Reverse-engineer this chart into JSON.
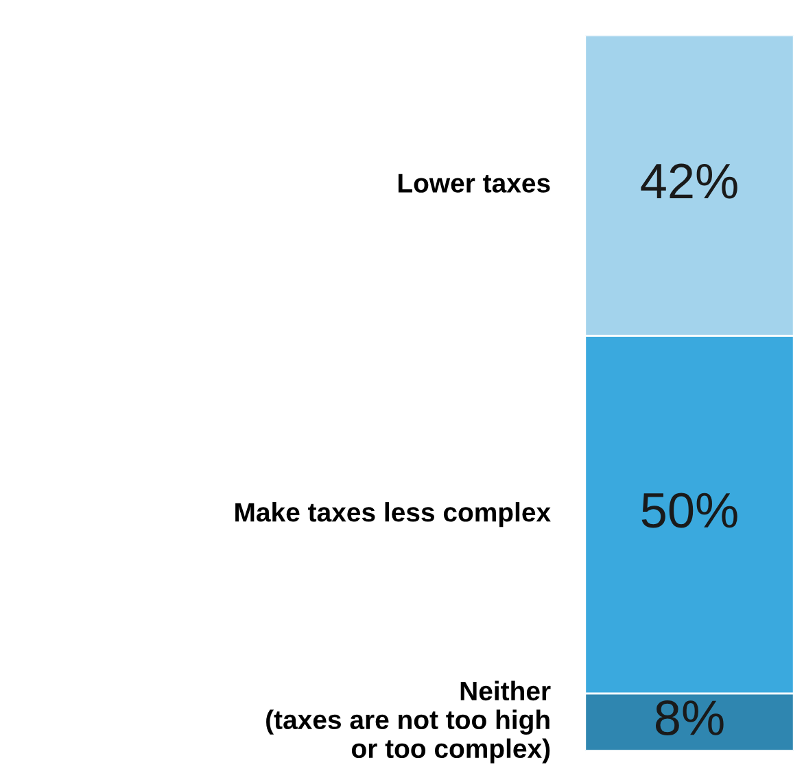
{
  "chart_data": {
    "type": "bar",
    "stacked": true,
    "categories": [
      null
    ],
    "series": [
      {
        "name": "Neither\n(taxes are not too high\nor too complex)",
        "color": "#2f86b0",
        "values": [
          8
        ],
        "value_labels": [
          "8%"
        ]
      },
      {
        "name": "Make taxes less complex",
        "color": "#3aa9de",
        "values": [
          50
        ],
        "value_labels": [
          "50%"
        ]
      },
      {
        "name": "Lower taxes",
        "color": "#a3d3ec",
        "values": [
          42
        ],
        "value_labels": [
          "42%"
        ]
      }
    ]
  }
}
